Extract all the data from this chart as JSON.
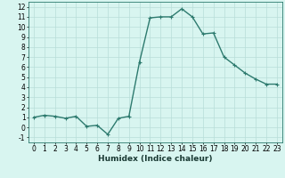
{
  "x": [
    0,
    1,
    2,
    3,
    4,
    5,
    6,
    7,
    8,
    9,
    10,
    11,
    12,
    13,
    14,
    15,
    16,
    17,
    18,
    19,
    20,
    21,
    22,
    23
  ],
  "y": [
    1,
    1.2,
    1.1,
    0.9,
    1.1,
    0.1,
    0.2,
    -0.7,
    0.9,
    1.1,
    6.5,
    10.9,
    11,
    11,
    11.8,
    11,
    9.3,
    9.4,
    7.0,
    6.2,
    5.4,
    4.8,
    4.3,
    4.3
  ],
  "line_color": "#2d7a6e",
  "marker": "+",
  "bg_color": "#d8f5f0",
  "grid_color": "#b8ddd8",
  "xlabel": "Humidex (Indice chaleur)",
  "xlim": [
    -0.5,
    23.5
  ],
  "ylim": [
    -1.5,
    12.5
  ],
  "yticks": [
    -1,
    0,
    1,
    2,
    3,
    4,
    5,
    6,
    7,
    8,
    9,
    10,
    11,
    12
  ],
  "xticks": [
    0,
    1,
    2,
    3,
    4,
    5,
    6,
    7,
    8,
    9,
    10,
    11,
    12,
    13,
    14,
    15,
    16,
    17,
    18,
    19,
    20,
    21,
    22,
    23
  ],
  "linewidth": 1.0,
  "markersize": 3.5,
  "tick_fontsize": 5.5,
  "xlabel_fontsize": 6.5
}
